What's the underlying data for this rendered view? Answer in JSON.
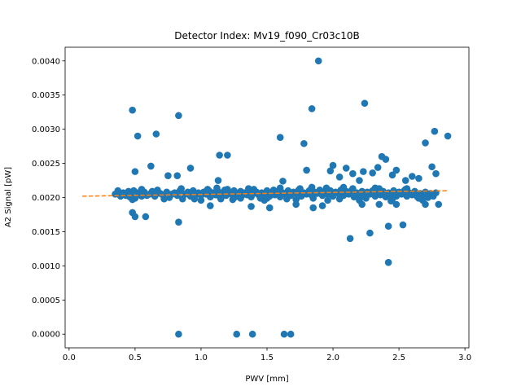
{
  "chart_data": {
    "type": "scatter",
    "title": "Detector Index: Mv19_f090_Cr03c10B",
    "xlabel": "PWV [mm]",
    "ylabel": "A2 Signal [pW]",
    "xlim": [
      -0.03,
      3.03
    ],
    "ylim": [
      -0.0002,
      0.0042
    ],
    "x_ticks": [
      0.0,
      0.5,
      1.0,
      1.5,
      2.0,
      2.5,
      3.0
    ],
    "x_tick_labels": [
      "0.0",
      "0.5",
      "1.0",
      "1.5",
      "2.0",
      "2.5",
      "3.0"
    ],
    "y_ticks": [
      0.0,
      0.0005,
      0.001,
      0.0015,
      0.002,
      0.0025,
      0.003,
      0.0035,
      0.004
    ],
    "y_tick_labels": [
      "0.0000",
      "0.0005",
      "0.0010",
      "0.0015",
      "0.0020",
      "0.0025",
      "0.0030",
      "0.0035",
      "0.0040"
    ],
    "grid": false,
    "colors": {
      "points": "#1f77b4",
      "fit": "#ff7f0e"
    },
    "fit_line": {
      "x": [
        0.1,
        2.87
      ],
      "y": [
        0.00202,
        0.0021
      ],
      "style": "dashed"
    },
    "series": [
      {
        "values": [
          [
            0.35,
            0.00205
          ],
          [
            0.37,
            0.0021
          ],
          [
            0.39,
            0.00202
          ],
          [
            0.41,
            0.00207
          ],
          [
            0.43,
            0.00203
          ],
          [
            0.45,
            0.00209
          ],
          [
            0.46,
            0.00201
          ],
          [
            0.47,
            0.00206
          ],
          [
            0.49,
            0.0021
          ],
          [
            0.5,
            0.00199
          ],
          [
            0.52,
            0.00207
          ],
          [
            0.53,
            0.00204
          ],
          [
            0.55,
            0.00202
          ],
          [
            0.57,
            0.00208
          ],
          [
            0.59,
            0.00203
          ],
          [
            0.61,
            0.00205
          ],
          [
            0.63,
            0.00209
          ],
          [
            0.65,
            0.00202
          ],
          [
            0.67,
            0.00211
          ],
          [
            0.69,
            0.00206
          ],
          [
            0.71,
            0.00204
          ],
          [
            0.74,
            0.00208
          ],
          [
            0.76,
            0.002
          ],
          [
            0.78,
            0.00205
          ],
          [
            0.8,
            0.00207
          ],
          [
            0.82,
            0.00203
          ],
          [
            0.84,
            0.0021
          ],
          [
            0.86,
            0.00198
          ],
          [
            0.88,
            0.00205
          ],
          [
            0.9,
            0.00208
          ],
          [
            0.92,
            0.00202
          ],
          [
            0.94,
            0.0021
          ],
          [
            0.96,
            0.00204
          ],
          [
            0.98,
            0.00207
          ],
          [
            1.0,
            0.00203
          ],
          [
            1.02,
            0.00208
          ],
          [
            1.04,
            0.00205
          ],
          [
            1.06,
            0.0021
          ],
          [
            1.07,
            0.00201
          ],
          [
            1.09,
            0.00207
          ],
          [
            1.11,
            0.00204
          ],
          [
            1.13,
            0.00209
          ],
          [
            1.14,
            0.00202
          ],
          [
            1.16,
            0.00206
          ],
          [
            1.18,
            0.00211
          ],
          [
            1.19,
            0.00203
          ],
          [
            1.21,
            0.00207
          ],
          [
            1.23,
            0.00205
          ],
          [
            1.25,
            0.0021
          ],
          [
            1.26,
            0.00201
          ],
          [
            1.28,
            0.00206
          ],
          [
            1.3,
            0.00209
          ],
          [
            1.31,
            0.00203
          ],
          [
            1.33,
            0.00207
          ],
          [
            1.35,
            0.00204
          ],
          [
            1.37,
            0.00209
          ],
          [
            1.38,
            0.00201
          ],
          [
            1.4,
            0.00206
          ],
          [
            1.42,
            0.00208
          ],
          [
            1.44,
            0.00203
          ],
          [
            1.46,
            0.00207
          ],
          [
            1.48,
            0.00205
          ],
          [
            1.5,
            0.0021
          ],
          [
            1.52,
            0.00202
          ],
          [
            1.54,
            0.00208
          ],
          [
            1.56,
            0.00204
          ],
          [
            1.58,
            0.00209
          ],
          [
            1.6,
            0.00201
          ],
          [
            1.62,
            0.00207
          ],
          [
            1.64,
            0.00205
          ],
          [
            1.66,
            0.0021
          ],
          [
            1.68,
            0.00203
          ],
          [
            1.7,
            0.00208
          ],
          [
            1.72,
            0.00206
          ],
          [
            1.74,
            0.00211
          ],
          [
            1.76,
            0.00202
          ],
          [
            1.78,
            0.00207
          ],
          [
            1.8,
            0.00205
          ],
          [
            1.82,
            0.0021
          ],
          [
            1.84,
            0.00203
          ],
          [
            1.86,
            0.00208
          ],
          [
            1.88,
            0.00206
          ],
          [
            1.9,
            0.00211
          ],
          [
            1.92,
            0.00203
          ],
          [
            1.94,
            0.00208
          ],
          [
            1.96,
            0.00205
          ],
          [
            1.98,
            0.0021
          ],
          [
            2.0,
            0.00202
          ],
          [
            2.02,
            0.00208
          ],
          [
            2.04,
            0.00206
          ],
          [
            2.06,
            0.00211
          ],
          [
            2.08,
            0.00203
          ],
          [
            2.1,
            0.00209
          ],
          [
            2.12,
            0.00205
          ],
          [
            2.14,
            0.0021
          ],
          [
            2.16,
            0.00201
          ],
          [
            2.18,
            0.00207
          ],
          [
            2.2,
            0.00204
          ],
          [
            2.22,
            0.00209
          ],
          [
            2.24,
            0.00202
          ],
          [
            2.26,
            0.00208
          ],
          [
            2.28,
            0.00205
          ],
          [
            2.3,
            0.0021
          ],
          [
            2.32,
            0.00202
          ],
          [
            2.34,
            0.00207
          ],
          [
            2.36,
            0.00204
          ],
          [
            2.38,
            0.00209
          ],
          [
            2.4,
            0.00201
          ],
          [
            2.42,
            0.00207
          ],
          [
            2.44,
            0.00204
          ],
          [
            2.46,
            0.0021
          ],
          [
            2.48,
            0.00202
          ],
          [
            2.5,
            0.00208
          ],
          [
            2.52,
            0.00205
          ],
          [
            2.54,
            0.0021
          ],
          [
            2.56,
            0.00202
          ],
          [
            2.58,
            0.00207
          ],
          [
            2.6,
            0.00204
          ],
          [
            2.62,
            0.00209
          ],
          [
            2.64,
            0.00201
          ],
          [
            2.66,
            0.00206
          ],
          [
            2.68,
            0.00203
          ],
          [
            2.7,
            0.00208
          ],
          [
            2.72,
            0.002
          ],
          [
            2.74,
            0.00206
          ],
          [
            2.76,
            0.00202
          ],
          [
            2.78,
            0.00207
          ],
          [
            0.48,
            0.00197
          ],
          [
            0.55,
            0.00212
          ],
          [
            0.72,
            0.00198
          ],
          [
            0.85,
            0.00213
          ],
          [
            1.0,
            0.00196
          ],
          [
            1.12,
            0.00214
          ],
          [
            1.24,
            0.00197
          ],
          [
            1.36,
            0.00213
          ],
          [
            1.48,
            0.00196
          ],
          [
            1.6,
            0.00214
          ],
          [
            1.72,
            0.00197
          ],
          [
            1.84,
            0.00215
          ],
          [
            1.96,
            0.00196
          ],
          [
            2.08,
            0.00215
          ],
          [
            2.2,
            0.00196
          ],
          [
            2.32,
            0.00214
          ],
          [
            2.44,
            0.00195
          ],
          [
            2.56,
            0.00213
          ],
          [
            2.68,
            0.00196
          ],
          [
            1.5,
            0.00199
          ],
          [
            1.55,
            0.00211
          ],
          [
            1.65,
            0.00198
          ],
          [
            1.75,
            0.00213
          ],
          [
            1.85,
            0.00199
          ],
          [
            1.95,
            0.00214
          ],
          [
            2.05,
            0.00198
          ],
          [
            2.15,
            0.00213
          ],
          [
            2.25,
            0.00199
          ],
          [
            2.35,
            0.00213
          ],
          [
            2.45,
            0.00198
          ],
          [
            2.55,
            0.00212
          ],
          [
            2.65,
            0.00199
          ],
          [
            1.15,
            0.00198
          ],
          [
            1.2,
            0.00212
          ],
          [
            1.3,
            0.00199
          ],
          [
            1.4,
            0.00212
          ],
          [
            1.45,
            0.00199
          ],
          [
            0.95,
            0.00198
          ],
          [
            1.05,
            0.00212
          ],
          [
            0.48,
            0.00328
          ],
          [
            0.52,
            0.0029
          ],
          [
            0.66,
            0.00293
          ],
          [
            0.83,
            0.0032
          ],
          [
            0.5,
            0.00238
          ],
          [
            0.62,
            0.00246
          ],
          [
            0.75,
            0.00232
          ],
          [
            0.82,
            0.00232
          ],
          [
            0.92,
            0.00243
          ],
          [
            0.48,
            0.00178
          ],
          [
            0.5,
            0.00172
          ],
          [
            0.58,
            0.00172
          ],
          [
            0.83,
            0.00164
          ],
          [
            1.14,
            0.00262
          ],
          [
            1.2,
            0.00262
          ],
          [
            1.13,
            0.00225
          ],
          [
            1.6,
            0.00288
          ],
          [
            1.62,
            0.00224
          ],
          [
            1.78,
            0.00279
          ],
          [
            1.84,
            0.0033
          ],
          [
            1.89,
            0.004
          ],
          [
            1.8,
            0.0024
          ],
          [
            1.98,
            0.00239
          ],
          [
            2.0,
            0.00247
          ],
          [
            2.05,
            0.0023
          ],
          [
            2.1,
            0.00243
          ],
          [
            2.15,
            0.00235
          ],
          [
            2.2,
            0.00225
          ],
          [
            2.24,
            0.00338
          ],
          [
            2.23,
            0.00238
          ],
          [
            2.3,
            0.00236
          ],
          [
            2.34,
            0.00244
          ],
          [
            2.37,
            0.0026
          ],
          [
            2.4,
            0.00256
          ],
          [
            2.45,
            0.00233
          ],
          [
            2.48,
            0.0024
          ],
          [
            2.55,
            0.00225
          ],
          [
            2.6,
            0.00231
          ],
          [
            2.65,
            0.00228
          ],
          [
            2.7,
            0.0028
          ],
          [
            2.75,
            0.00245
          ],
          [
            2.77,
            0.00297
          ],
          [
            2.87,
            0.0029
          ],
          [
            2.78,
            0.00235
          ],
          [
            1.52,
            0.00185
          ],
          [
            1.72,
            0.0019
          ],
          [
            1.85,
            0.00185
          ],
          [
            1.92,
            0.00188
          ],
          [
            2.13,
            0.0014
          ],
          [
            2.22,
            0.0019
          ],
          [
            2.28,
            0.00148
          ],
          [
            2.35,
            0.0019
          ],
          [
            2.42,
            0.00105
          ],
          [
            2.42,
            0.00158
          ],
          [
            2.48,
            0.0019
          ],
          [
            2.53,
            0.0016
          ],
          [
            2.7,
            0.0019
          ],
          [
            2.8,
            0.0019
          ],
          [
            1.07,
            0.00188
          ],
          [
            1.38,
            0.00187
          ],
          [
            0.83,
            0.0
          ],
          [
            1.27,
            0.0
          ],
          [
            1.39,
            0.0
          ],
          [
            1.63,
            0.0
          ],
          [
            1.68,
            0.0
          ]
        ]
      }
    ]
  }
}
